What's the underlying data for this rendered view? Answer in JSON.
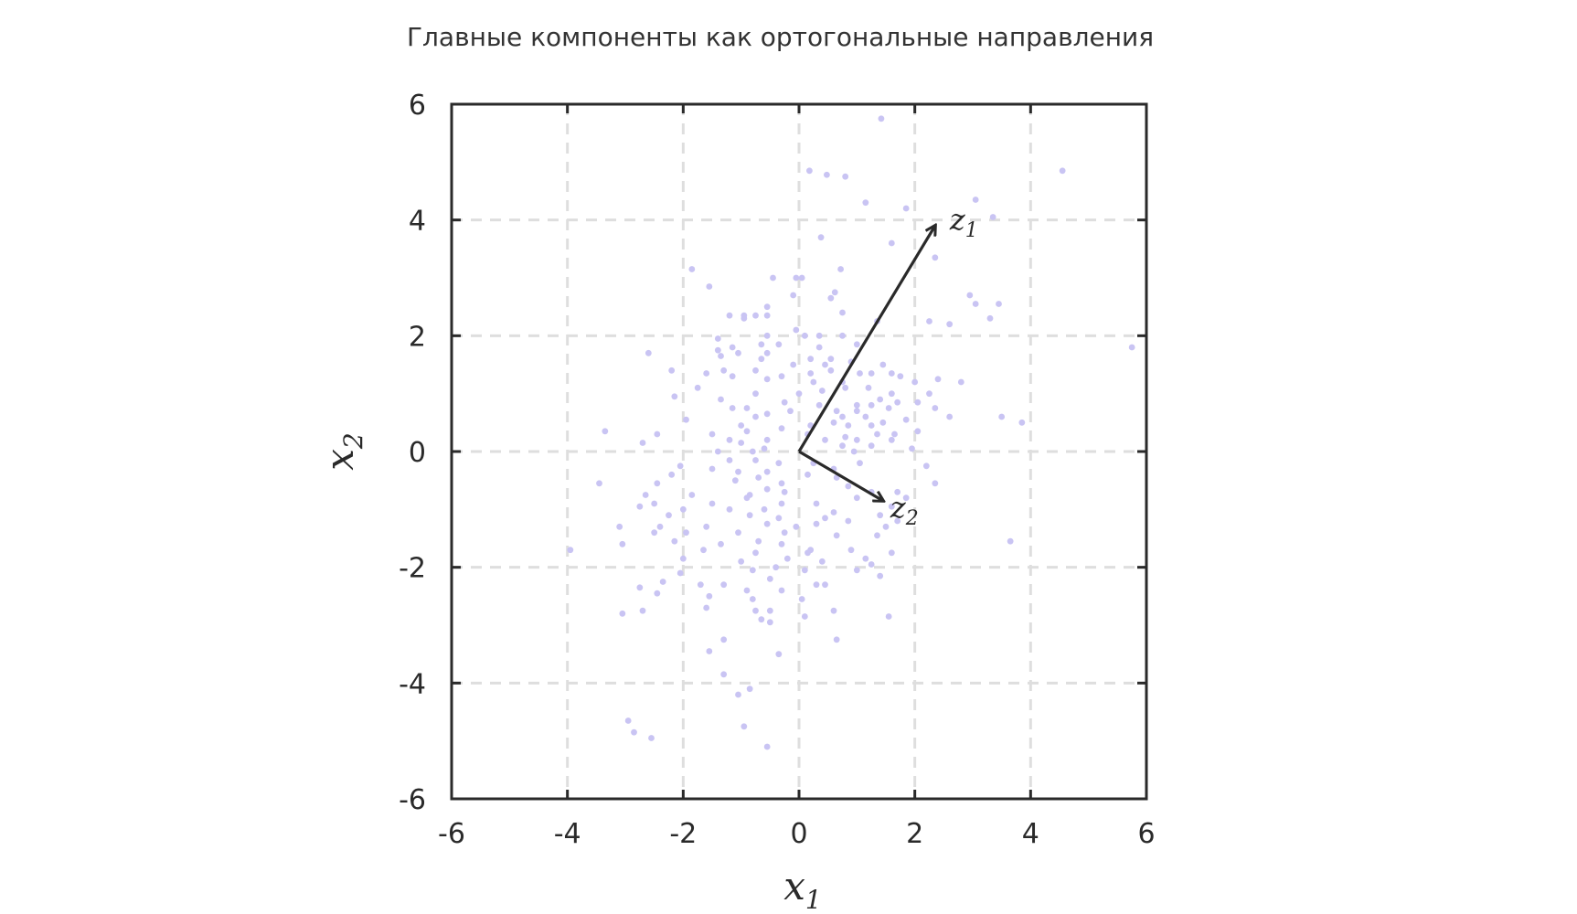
{
  "chart_data": {
    "type": "scatter",
    "title": "Главные компоненты как ортогональные направления",
    "xlabel": "x",
    "xlabel_sub": "1",
    "ylabel": "x",
    "ylabel_sub": "2",
    "xlim": [
      -6,
      6
    ],
    "ylim": [
      -6,
      6
    ],
    "xticks": [
      -6,
      -4,
      -2,
      0,
      2,
      4,
      6
    ],
    "yticks": [
      -6,
      -4,
      -2,
      0,
      2,
      4,
      6
    ],
    "grid": true,
    "point_color": "#c9c4f3",
    "vector_color": "#2a2a2a",
    "vectors": [
      {
        "name": "z",
        "sub": "1",
        "x0": 0,
        "y0": 0,
        "x1": 2.35,
        "y1": 3.9
      },
      {
        "name": "z",
        "sub": "2",
        "x0": 0,
        "y0": 0,
        "x1": 1.45,
        "y1": -0.85
      }
    ],
    "points": [
      [
        1.42,
        5.75
      ],
      [
        0.18,
        4.85
      ],
      [
        0.48,
        4.78
      ],
      [
        0.8,
        4.75
      ],
      [
        4.55,
        4.85
      ],
      [
        1.15,
        4.3
      ],
      [
        1.85,
        4.2
      ],
      [
        3.05,
        4.35
      ],
      [
        3.35,
        4.05
      ],
      [
        0.38,
        3.7
      ],
      [
        1.6,
        3.6
      ],
      [
        2.35,
        3.35
      ],
      [
        -1.85,
        3.15
      ],
      [
        0.72,
        3.15
      ],
      [
        -0.45,
        3.0
      ],
      [
        -0.05,
        3.0
      ],
      [
        0.05,
        3.0
      ],
      [
        -1.55,
        2.85
      ],
      [
        0.62,
        2.75
      ],
      [
        0.55,
        2.65
      ],
      [
        -0.1,
        2.7
      ],
      [
        2.95,
        2.7
      ],
      [
        3.05,
        2.55
      ],
      [
        3.45,
        2.55
      ],
      [
        -0.55,
        2.5
      ],
      [
        -0.55,
        2.35
      ],
      [
        -1.2,
        2.35
      ],
      [
        -0.95,
        2.35
      ],
      [
        -0.75,
        2.35
      ],
      [
        -0.95,
        2.3
      ],
      [
        0.75,
        2.4
      ],
      [
        3.3,
        2.3
      ],
      [
        -0.05,
        2.1
      ],
      [
        0.1,
        2.0
      ],
      [
        0.35,
        2.0
      ],
      [
        0.75,
        2.0
      ],
      [
        -1.4,
        1.95
      ],
      [
        -0.55,
        2.0
      ],
      [
        1.35,
        2.25
      ],
      [
        2.25,
        2.25
      ],
      [
        2.6,
        2.2
      ],
      [
        -1.15,
        1.8
      ],
      [
        -0.65,
        1.85
      ],
      [
        -0.35,
        1.85
      ],
      [
        -1.4,
        1.75
      ],
      [
        -0.55,
        1.7
      ],
      [
        0.35,
        1.8
      ],
      [
        1.0,
        1.85
      ],
      [
        0.2,
        1.6
      ],
      [
        -2.6,
        1.7
      ],
      [
        -1.35,
        1.65
      ],
      [
        -1.05,
        1.7
      ],
      [
        -0.65,
        1.6
      ],
      [
        0.55,
        1.6
      ],
      [
        0.45,
        1.5
      ],
      [
        0.9,
        1.55
      ],
      [
        -0.1,
        1.5
      ],
      [
        1.45,
        1.5
      ],
      [
        5.75,
        1.8
      ],
      [
        -1.3,
        1.4
      ],
      [
        -0.75,
        1.4
      ],
      [
        0.2,
        1.35
      ],
      [
        0.55,
        1.4
      ],
      [
        1.05,
        1.35
      ],
      [
        1.25,
        1.35
      ],
      [
        1.6,
        1.35
      ],
      [
        -2.2,
        1.4
      ],
      [
        -1.6,
        1.35
      ],
      [
        -1.15,
        1.3
      ],
      [
        -0.55,
        1.25
      ],
      [
        -0.3,
        1.3
      ],
      [
        0.25,
        1.2
      ],
      [
        0.75,
        1.2
      ],
      [
        1.75,
        1.3
      ],
      [
        2.0,
        1.2
      ],
      [
        2.4,
        1.25
      ],
      [
        2.8,
        1.2
      ],
      [
        -1.75,
        1.1
      ],
      [
        0.4,
        1.05
      ],
      [
        0.8,
        1.1
      ],
      [
        1.2,
        1.1
      ],
      [
        1.6,
        1.0
      ],
      [
        2.25,
        1.0
      ],
      [
        -2.15,
        0.95
      ],
      [
        -0.75,
        1.0
      ],
      [
        0.0,
        1.0
      ],
      [
        1.4,
        0.9
      ],
      [
        1.7,
        0.85
      ],
      [
        2.05,
        0.85
      ],
      [
        -1.35,
        0.9
      ],
      [
        -0.25,
        0.85
      ],
      [
        0.35,
        0.8
      ],
      [
        1.0,
        0.8
      ],
      [
        1.25,
        0.8
      ],
      [
        1.55,
        0.75
      ],
      [
        -1.15,
        0.75
      ],
      [
        -0.9,
        0.75
      ],
      [
        -0.55,
        0.65
      ],
      [
        -0.15,
        0.7
      ],
      [
        0.65,
        0.7
      ],
      [
        1.0,
        0.7
      ],
      [
        2.35,
        0.75
      ],
      [
        -1.95,
        0.55
      ],
      [
        -0.75,
        0.6
      ],
      [
        0.75,
        0.6
      ],
      [
        1.15,
        0.6
      ],
      [
        1.45,
        0.5
      ],
      [
        1.85,
        0.55
      ],
      [
        2.6,
        0.6
      ],
      [
        3.5,
        0.6
      ],
      [
        -1.0,
        0.45
      ],
      [
        -0.3,
        0.4
      ],
      [
        0.2,
        0.45
      ],
      [
        0.6,
        0.5
      ],
      [
        0.85,
        0.45
      ],
      [
        1.25,
        0.45
      ],
      [
        3.85,
        0.5
      ],
      [
        -0.9,
        0.35
      ],
      [
        0.15,
        0.3
      ],
      [
        1.35,
        0.3
      ],
      [
        1.65,
        0.3
      ],
      [
        2.05,
        0.35
      ],
      [
        -3.35,
        0.35
      ],
      [
        -2.45,
        0.3
      ],
      [
        -1.5,
        0.3
      ],
      [
        -1.2,
        0.2
      ],
      [
        -0.55,
        0.2
      ],
      [
        0.45,
        0.2
      ],
      [
        0.8,
        0.25
      ],
      [
        1.0,
        0.2
      ],
      [
        1.6,
        0.2
      ],
      [
        -2.7,
        0.15
      ],
      [
        -1.0,
        0.15
      ],
      [
        -0.6,
        0.05
      ],
      [
        0.75,
        0.1
      ],
      [
        1.25,
        0.1
      ],
      [
        1.95,
        0.05
      ],
      [
        -1.4,
        0.0
      ],
      [
        -0.8,
        0.0
      ],
      [
        0.95,
        0.0
      ],
      [
        -2.05,
        -0.25
      ],
      [
        -1.2,
        -0.15
      ],
      [
        -0.75,
        -0.15
      ],
      [
        -0.35,
        -0.2
      ],
      [
        0.25,
        -0.2
      ],
      [
        0.6,
        -0.3
      ],
      [
        1.05,
        -0.2
      ],
      [
        2.2,
        -0.25
      ],
      [
        -2.2,
        -0.4
      ],
      [
        -1.5,
        -0.3
      ],
      [
        -1.05,
        -0.35
      ],
      [
        -0.55,
        -0.35
      ],
      [
        0.15,
        -0.4
      ],
      [
        0.65,
        -0.45
      ],
      [
        2.35,
        -0.55
      ],
      [
        -3.45,
        -0.55
      ],
      [
        -2.45,
        -0.55
      ],
      [
        -1.1,
        -0.5
      ],
      [
        -0.7,
        -0.45
      ],
      [
        -0.3,
        -0.55
      ],
      [
        0.85,
        -0.6
      ],
      [
        1.25,
        -0.7
      ],
      [
        1.7,
        -0.7
      ],
      [
        -2.65,
        -0.75
      ],
      [
        -1.85,
        -0.75
      ],
      [
        -0.85,
        -0.75
      ],
      [
        -0.55,
        -0.65
      ],
      [
        -0.25,
        -0.7
      ],
      [
        1.0,
        -0.8
      ],
      [
        1.85,
        -0.8
      ],
      [
        -2.5,
        -0.9
      ],
      [
        -1.5,
        -0.9
      ],
      [
        -0.9,
        -0.8
      ],
      [
        -0.3,
        -0.9
      ],
      [
        0.3,
        -0.9
      ],
      [
        1.6,
        -0.95
      ],
      [
        -2.75,
        -0.95
      ],
      [
        -2.0,
        -1.0
      ],
      [
        -1.2,
        -1.0
      ],
      [
        -0.6,
        -1.0
      ],
      [
        0.6,
        -1.05
      ],
      [
        1.4,
        -1.1
      ],
      [
        -2.25,
        -1.1
      ],
      [
        -0.85,
        -1.1
      ],
      [
        -0.35,
        -1.15
      ],
      [
        0.45,
        -1.15
      ],
      [
        0.85,
        -1.2
      ],
      [
        1.7,
        -1.2
      ],
      [
        -3.1,
        -1.3
      ],
      [
        -2.4,
        -1.3
      ],
      [
        -1.6,
        -1.3
      ],
      [
        -0.55,
        -1.25
      ],
      [
        -0.05,
        -1.3
      ],
      [
        0.3,
        -1.25
      ],
      [
        1.5,
        -1.3
      ],
      [
        -2.5,
        -1.4
      ],
      [
        -1.95,
        -1.4
      ],
      [
        -1.05,
        -1.4
      ],
      [
        -0.25,
        -1.4
      ],
      [
        0.65,
        -1.45
      ],
      [
        1.35,
        -1.45
      ],
      [
        -2.15,
        -1.55
      ],
      [
        -0.7,
        -1.55
      ],
      [
        -3.05,
        -1.6
      ],
      [
        -1.35,
        -1.6
      ],
      [
        -0.3,
        -1.6
      ],
      [
        0.2,
        -1.7
      ],
      [
        0.9,
        -1.7
      ],
      [
        -3.95,
        -1.7
      ],
      [
        -1.65,
        -1.7
      ],
      [
        -0.75,
        -1.75
      ],
      [
        0.15,
        -1.75
      ],
      [
        1.6,
        -1.75
      ],
      [
        3.65,
        -1.55
      ],
      [
        -2.0,
        -1.85
      ],
      [
        -0.2,
        -1.85
      ],
      [
        0.4,
        -1.9
      ],
      [
        1.15,
        -1.85
      ],
      [
        -1.0,
        -1.9
      ],
      [
        -0.4,
        -2.0
      ],
      [
        1.25,
        -1.95
      ],
      [
        -2.05,
        -2.1
      ],
      [
        -0.8,
        -2.05
      ],
      [
        0.1,
        -2.05
      ],
      [
        1.0,
        -2.05
      ],
      [
        1.4,
        -2.15
      ],
      [
        -2.35,
        -2.25
      ],
      [
        -1.3,
        -2.3
      ],
      [
        -0.5,
        -2.2
      ],
      [
        0.3,
        -2.3
      ],
      [
        -2.75,
        -2.35
      ],
      [
        -1.7,
        -2.3
      ],
      [
        -0.9,
        -2.4
      ],
      [
        -0.3,
        -2.4
      ],
      [
        0.45,
        -2.3
      ],
      [
        -2.45,
        -2.45
      ],
      [
        -1.55,
        -2.5
      ],
      [
        -0.8,
        -2.55
      ],
      [
        0.05,
        -2.55
      ],
      [
        -3.05,
        -2.8
      ],
      [
        -2.7,
        -2.75
      ],
      [
        -1.6,
        -2.7
      ],
      [
        -0.75,
        -2.75
      ],
      [
        -0.5,
        -2.75
      ],
      [
        0.6,
        -2.75
      ],
      [
        -0.65,
        -2.9
      ],
      [
        -0.5,
        -2.95
      ],
      [
        0.1,
        -2.85
      ],
      [
        1.55,
        -2.85
      ],
      [
        -1.3,
        -3.25
      ],
      [
        0.65,
        -3.25
      ],
      [
        -1.55,
        -3.45
      ],
      [
        -0.35,
        -3.5
      ],
      [
        -1.3,
        -3.85
      ],
      [
        -0.85,
        -4.1
      ],
      [
        -1.05,
        -4.2
      ],
      [
        -2.95,
        -4.65
      ],
      [
        -2.85,
        -4.85
      ],
      [
        -2.55,
        -4.95
      ],
      [
        -0.95,
        -4.75
      ],
      [
        -0.55,
        -5.1
      ]
    ]
  }
}
